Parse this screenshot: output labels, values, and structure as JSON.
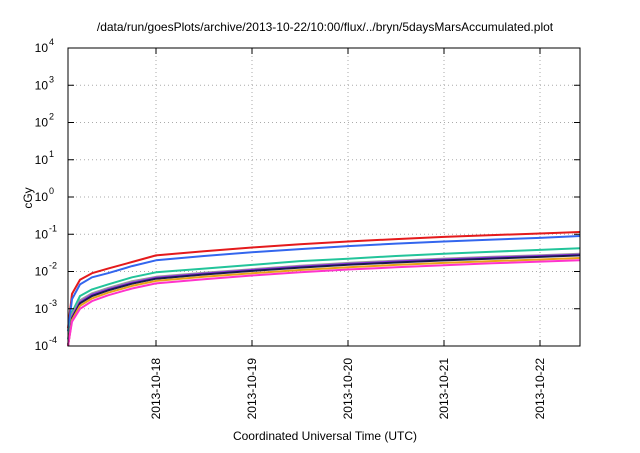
{
  "chart_data": {
    "type": "line",
    "title": "/data/run/goesPlots/archive/2013-10-22/10:00/flux/../bryn/5daysMarsAccumulated.plot",
    "xlabel": "Coordinated Universal Time (UTC)",
    "ylabel": "cGy",
    "x_range": [
      "2013-10-17T02:00",
      "2013-10-22T10:00"
    ],
    "x_ticks": [
      "2013-10-18",
      "2013-10-19",
      "2013-10-20",
      "2013-10-21",
      "2013-10-22"
    ],
    "y_scale": "log",
    "y_range": [
      0.0001,
      10000
    ],
    "y_ticks": [
      {
        "value": 0.0001,
        "base": "10",
        "exp": "-4"
      },
      {
        "value": 0.001,
        "base": "10",
        "exp": "-3"
      },
      {
        "value": 0.01,
        "base": "10",
        "exp": "-2"
      },
      {
        "value": 0.1,
        "base": "10",
        "exp": "-1"
      },
      {
        "value": 1,
        "base": "10",
        "exp": "0"
      },
      {
        "value": 10,
        "base": "10",
        "exp": "1"
      },
      {
        "value": 100,
        "base": "10",
        "exp": "2"
      },
      {
        "value": 1000,
        "base": "10",
        "exp": "3"
      },
      {
        "value": 10000,
        "base": "10",
        "exp": "4"
      }
    ],
    "grid": true,
    "legend": "none",
    "x": [
      "2013-10-17T02:00",
      "2013-10-17T03:00",
      "2013-10-17T05:00",
      "2013-10-17T08:00",
      "2013-10-17T12:00",
      "2013-10-17T18:00",
      "2013-10-18T00:00",
      "2013-10-18T12:00",
      "2013-10-19T00:00",
      "2013-10-19T12:00",
      "2013-10-20T00:00",
      "2013-10-20T12:00",
      "2013-10-21T00:00",
      "2013-10-21T12:00",
      "2013-10-22T00:00",
      "2013-10-22T10:00"
    ],
    "series": [
      {
        "color": "#e41a1c",
        "values": [
          0.0003,
          0.0025,
          0.006,
          0.009,
          0.012,
          0.018,
          0.027,
          0.035,
          0.044,
          0.054,
          0.064,
          0.074,
          0.085,
          0.095,
          0.105,
          0.115
        ]
      },
      {
        "color": "#3366ee",
        "values": [
          0.00025,
          0.0018,
          0.0045,
          0.007,
          0.009,
          0.014,
          0.02,
          0.026,
          0.033,
          0.04,
          0.048,
          0.056,
          0.064,
          0.072,
          0.08,
          0.09
        ]
      },
      {
        "color": "#22c49a",
        "values": [
          0.00015,
          0.0008,
          0.0022,
          0.0033,
          0.0045,
          0.007,
          0.0095,
          0.012,
          0.015,
          0.019,
          0.022,
          0.026,
          0.03,
          0.034,
          0.038,
          0.042
        ]
      },
      {
        "color": "#9a9a9a",
        "values": [
          0.0001,
          0.0007,
          0.0017,
          0.0026,
          0.0036,
          0.0055,
          0.0072,
          0.0092,
          0.0115,
          0.0142,
          0.017,
          0.0196,
          0.0222,
          0.0248,
          0.0274,
          0.03
        ]
      },
      {
        "color": "#8a2be2",
        "values": [
          0.0001,
          0.0006,
          0.0015,
          0.0024,
          0.0033,
          0.005,
          0.0068,
          0.0088,
          0.011,
          0.0135,
          0.016,
          0.0185,
          0.021,
          0.0236,
          0.026,
          0.0285
        ]
      },
      {
        "color": "#1a1a50",
        "values": [
          0.0001,
          0.00055,
          0.0014,
          0.0022,
          0.0031,
          0.0047,
          0.0064,
          0.0083,
          0.0104,
          0.0127,
          0.0151,
          0.0174,
          0.0198,
          0.0222,
          0.0246,
          0.027
        ]
      },
      {
        "color": "#e8a317",
        "values": [
          0.0001,
          0.0005,
          0.0012,
          0.0019,
          0.0027,
          0.0041,
          0.0056,
          0.0072,
          0.009,
          0.011,
          0.013,
          0.015,
          0.017,
          0.019,
          0.021,
          0.023
        ]
      },
      {
        "color": "#ff33cc",
        "values": [
          0.0001,
          0.00045,
          0.001,
          0.0016,
          0.0023,
          0.0035,
          0.0048,
          0.0062,
          0.0078,
          0.0095,
          0.0113,
          0.013,
          0.0148,
          0.0166,
          0.0184,
          0.02
        ]
      }
    ]
  }
}
